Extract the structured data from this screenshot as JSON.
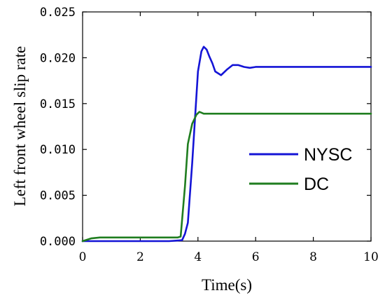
{
  "chart_data": {
    "type": "line",
    "xlabel": "Time(s)",
    "ylabel": "Left front wheel slip rate",
    "xlim": [
      0,
      10
    ],
    "ylim": [
      0,
      0.025
    ],
    "x_ticks": [
      "0",
      "2",
      "4",
      "6",
      "8",
      "10"
    ],
    "y_ticks": [
      "0.000",
      "0.005",
      "0.010",
      "0.015",
      "0.020",
      "0.025"
    ],
    "grid": false,
    "legend_position": "center-right",
    "series": [
      {
        "name": "NYSC",
        "color": "#1414d6",
        "x": [
          0,
          1,
          2,
          3,
          3.45,
          3.55,
          3.65,
          3.8,
          4.0,
          4.12,
          4.2,
          4.3,
          4.4,
          4.5,
          4.6,
          4.8,
          5.0,
          5.2,
          5.4,
          5.6,
          5.8,
          6.0,
          6.5,
          7,
          8,
          9,
          10
        ],
        "y": [
          0.0,
          0.0,
          0.0,
          0.0,
          0.0001,
          0.0008,
          0.002,
          0.0085,
          0.0185,
          0.0207,
          0.0212,
          0.0209,
          0.0201,
          0.0194,
          0.0185,
          0.0181,
          0.0187,
          0.0192,
          0.0192,
          0.019,
          0.0189,
          0.019,
          0.019,
          0.019,
          0.019,
          0.019,
          0.019
        ]
      },
      {
        "name": "DC",
        "color": "#1f7d1f",
        "x": [
          0,
          0.3,
          0.6,
          1,
          2,
          3,
          3.3,
          3.4,
          3.55,
          3.65,
          3.8,
          3.95,
          4.05,
          4.2,
          5,
          6,
          7,
          8,
          9,
          10
        ],
        "y": [
          0.0,
          0.0003,
          0.0004,
          0.0004,
          0.0004,
          0.0004,
          0.0004,
          0.0005,
          0.006,
          0.0106,
          0.0128,
          0.0138,
          0.0141,
          0.0139,
          0.0139,
          0.0139,
          0.0139,
          0.0139,
          0.0139,
          0.0139
        ]
      }
    ]
  }
}
